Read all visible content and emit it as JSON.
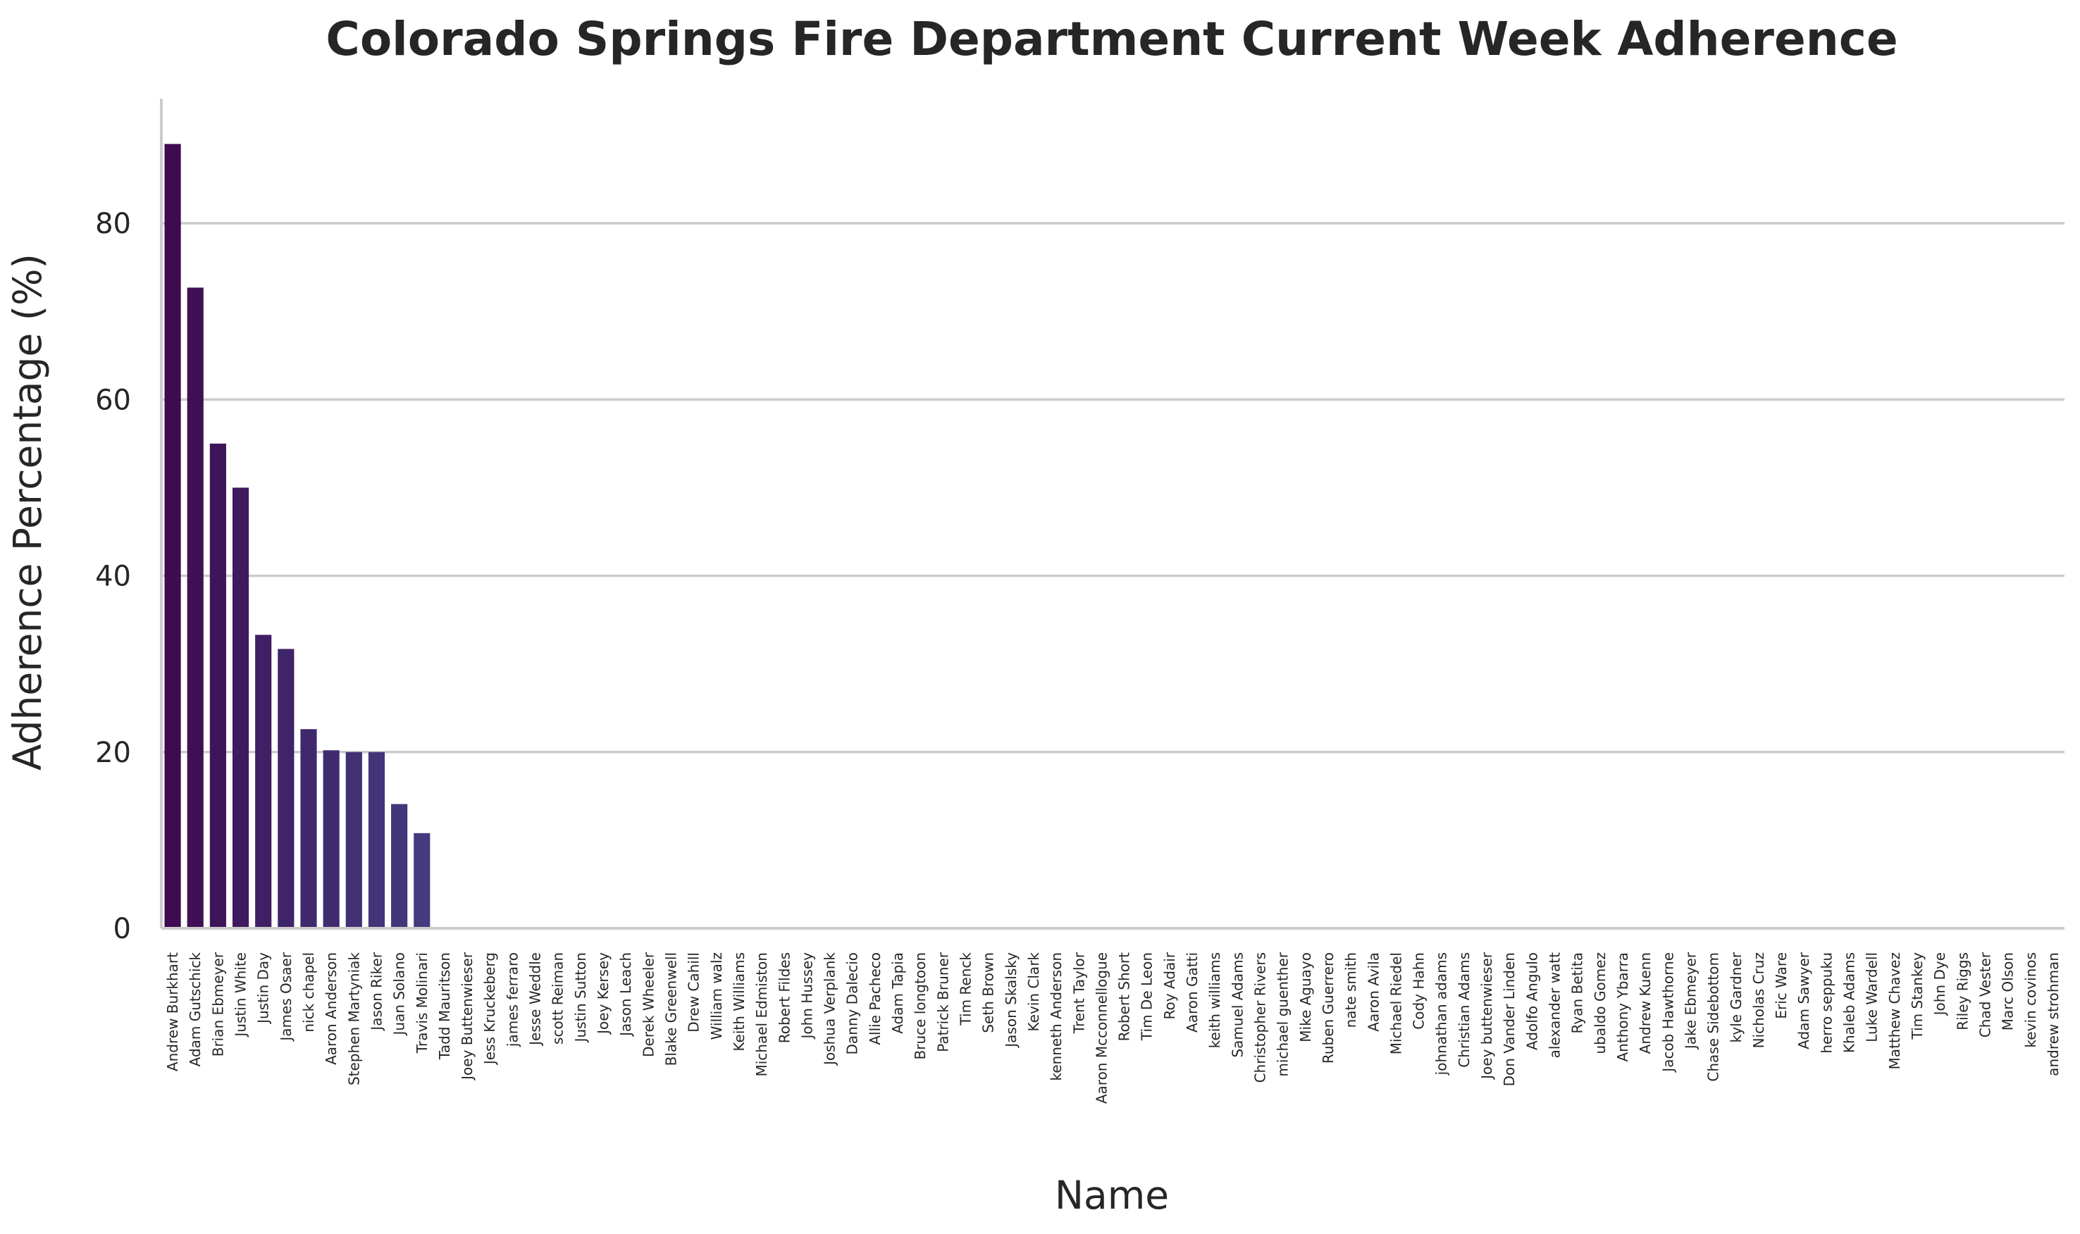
{
  "chart_data": {
    "type": "bar",
    "title": "Colorado Springs Fire Department Current Week Adherence",
    "xlabel": "Name",
    "ylabel": "Adherence Percentage (%)",
    "ylim": [
      0,
      94
    ],
    "yticks": [
      0,
      20,
      40,
      60,
      80
    ],
    "grid": "horizontal",
    "colors": {
      "bar_start": "#3f0b50",
      "bar_mid": "#40266b",
      "bar_end": "#453a7f",
      "grid": "#cccccc",
      "text": "#262626"
    },
    "categories": [
      "Andrew Burkhart",
      "Adam Gutschick",
      "Brian Ebmeyer",
      "Justin White",
      "Justin Day",
      "James Osaer",
      "nick chapel",
      "Aaron Anderson",
      "Stephen Martyniak",
      "Jason Riker",
      "Juan Solano",
      "Travis Molinari",
      "Tadd Mauritson",
      "Joey Buttenwieser",
      "Jess Kruckeberg",
      "james ferraro",
      "Jesse Weddle",
      "scott Reiman",
      "Justin Sutton",
      "Joey Kersey",
      "Jason Leach",
      "Derek Wheeler",
      "Blake Greenwell",
      "Drew Cahill",
      "William walz",
      "Keith Williams",
      "Michael Edmiston",
      "Robert Fildes",
      "John Hussey",
      "Joshua Verplank",
      "Danny Dalecio",
      "Allie Pacheco",
      "Adam Tapia",
      "Bruce longtoon",
      "Patrick Bruner",
      "Tim Renck",
      "Seth Brown",
      "Jason Skalsky",
      "Kevin Clark",
      "kenneth Anderson",
      "Trent Taylor",
      "Aaron Mcconnellogue",
      "Robert Short",
      "Tim De Leon",
      "Roy Adair",
      "Aaron Gatti",
      "keith williams",
      "Samuel Adams",
      "Christopher Rivers",
      "michael guenther",
      "Mike Aguayo",
      "Ruben Guerrero",
      "nate smith",
      "Aaron Avila",
      "Michael Riedel",
      "Cody Hahn",
      "johnathan adams",
      "Christian Adams",
      "Joey buttenwieser",
      "Don Vander Linden",
      "Adolfo Angulo",
      "alexander watt",
      "Ryan Betita",
      "ubaldo Gomez",
      "Anthony Ybarra",
      "Andrew Kuenn",
      "Jacob Hawthorne",
      "Jake Ebmeyer",
      "Chase Sidebottom",
      "kyle Gardner",
      "Nicholas Cruz",
      "Eric Ware",
      "Adam Sawyer",
      "herro seppuku",
      "Khaleb Adams",
      "Luke Wardell",
      "Matthew Chavez",
      "Tim Stankey",
      "John Dye",
      "Riley Riggs",
      "Chad Vester",
      "Marc Olson",
      "kevin covinos",
      "andrew strohman"
    ],
    "values": [
      89,
      72.7,
      55,
      50,
      33.3,
      31.7,
      22.6,
      20.2,
      20,
      20,
      14.1,
      10.8,
      0,
      0,
      0,
      0,
      0,
      0,
      0,
      0,
      0,
      0,
      0,
      0,
      0,
      0,
      0,
      0,
      0,
      0,
      0,
      0,
      0,
      0,
      0,
      0,
      0,
      0,
      0,
      0,
      0,
      0,
      0,
      0,
      0,
      0,
      0,
      0,
      0,
      0,
      0,
      0,
      0,
      0,
      0,
      0,
      0,
      0,
      0,
      0,
      0,
      0,
      0,
      0,
      0,
      0,
      0,
      0,
      0,
      0,
      0,
      0,
      0,
      0,
      0,
      0,
      0,
      0,
      0,
      0,
      0,
      0,
      0,
      0
    ]
  }
}
